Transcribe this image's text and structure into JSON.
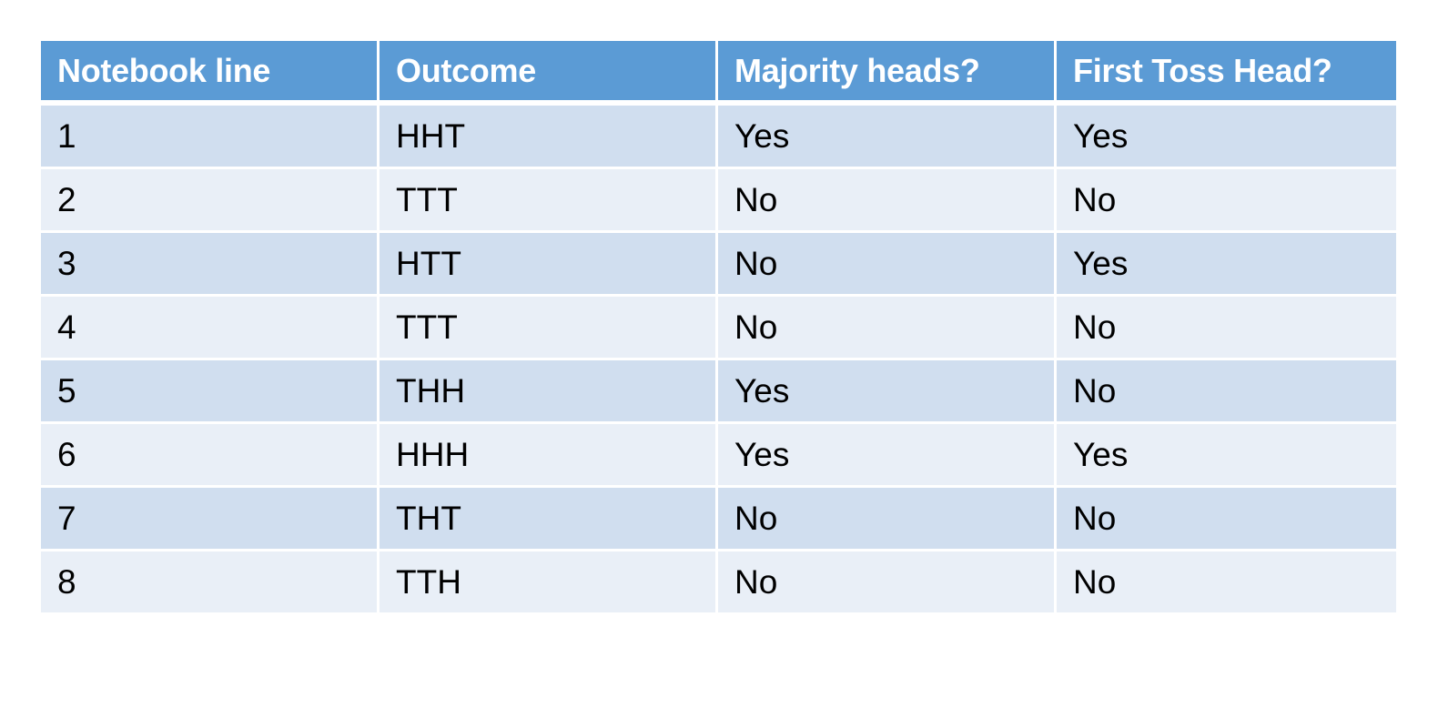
{
  "table": {
    "headers": [
      "Notebook line",
      "Outcome",
      "Majority heads?",
      "First Toss Head?"
    ],
    "rows": [
      [
        "1",
        "HHT",
        "Yes",
        "Yes"
      ],
      [
        "2",
        "TTT",
        "No",
        "No"
      ],
      [
        "3",
        "HTT",
        "No",
        "Yes"
      ],
      [
        "4",
        "TTT",
        "No",
        "No"
      ],
      [
        "5",
        "THH",
        "Yes",
        "No"
      ],
      [
        "6",
        "HHH",
        "Yes",
        "Yes"
      ],
      [
        "7",
        "THT",
        "No",
        "No"
      ],
      [
        "8",
        "TTH",
        "No",
        "No"
      ]
    ]
  },
  "colors": {
    "header_bg": "#5b9bd5",
    "header_text": "#ffffff",
    "row_dark": "#d0deef",
    "row_light": "#e9eff7"
  }
}
